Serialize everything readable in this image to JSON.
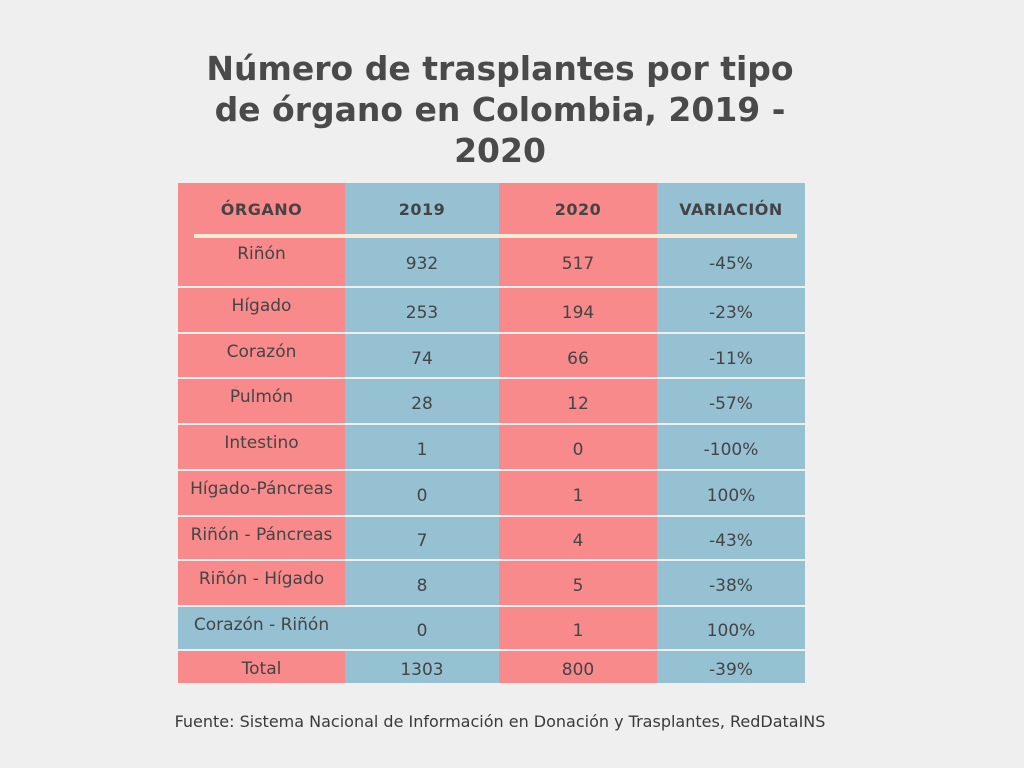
{
  "title": "Número de trasplantes por tipo de órgano en Colombia, 2019 - 2020",
  "colors": {
    "red": "#f88a8c",
    "blue": "#95c1d3",
    "background": "#efefef"
  },
  "chart_data": {
    "type": "table",
    "title": "Número de trasplantes por tipo de órgano en Colombia, 2019 - 2020",
    "columns": [
      "ÓRGANO",
      "2019",
      "2020",
      "VARIACIÓN"
    ],
    "rows": [
      [
        "Riñón",
        "932",
        "517",
        "-45%"
      ],
      [
        "Hígado",
        "253",
        "194",
        "-23%"
      ],
      [
        "Corazón",
        "74",
        "66",
        "-11%"
      ],
      [
        "Pulmón",
        "28",
        "12",
        "-57%"
      ],
      [
        "Intestino",
        "1",
        "0",
        "-100%"
      ],
      [
        "Hígado-Páncreas",
        "0",
        "1",
        "100%"
      ],
      [
        "Riñón - Páncreas",
        "7",
        "4",
        "-43%"
      ],
      [
        "Riñón - Hígado",
        "8",
        "5",
        "-38%"
      ],
      [
        "Corazón - Riñón",
        "0",
        "1",
        "100%"
      ],
      [
        "Total",
        "1303",
        "800",
        "-39%"
      ]
    ],
    "cell_colors": [
      [
        "red",
        "blue",
        "red",
        "blue"
      ],
      [
        "red",
        "blue",
        "red",
        "blue"
      ],
      [
        "red",
        "blue",
        "red",
        "blue"
      ],
      [
        "red",
        "blue",
        "red",
        "blue"
      ],
      [
        "red",
        "blue",
        "red",
        "blue"
      ],
      [
        "red",
        "blue",
        "red",
        "blue"
      ],
      [
        "red",
        "blue",
        "red",
        "blue"
      ],
      [
        "red",
        "blue",
        "red",
        "blue"
      ],
      [
        "red",
        "blue",
        "red",
        "blue"
      ],
      [
        "blue",
        "blue",
        "red",
        "blue"
      ],
      [
        "red",
        "blue",
        "red",
        "blue"
      ]
    ]
  },
  "footer": "Fuente: Sistema Nacional de Información en Donación y Trasplantes, RedDataINS"
}
